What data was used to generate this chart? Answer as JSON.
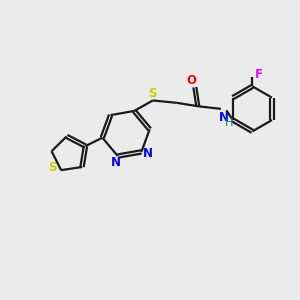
{
  "bg_color": "#ebebeb",
  "bond_color": "#1a1a1a",
  "N_color": "#0000ff",
  "S_color": "#cccc00",
  "O_color": "#ff0000",
  "F_color": "#ff00ff",
  "H_color": "#008080",
  "line_width": 1.6,
  "dbo": 0.055,
  "figsize": [
    3.0,
    3.0
  ],
  "dpi": 100,
  "xlim": [
    0,
    10
  ],
  "ylim": [
    0,
    10
  ]
}
